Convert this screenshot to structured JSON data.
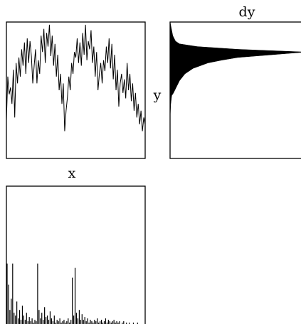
{
  "chart_data": [
    {
      "type": "line",
      "id": "main-panel",
      "title": "",
      "xlabel": "x",
      "ylabel": "y",
      "xlim": [
        0,
        1
      ],
      "ylim": [
        0,
        1
      ],
      "grid": false,
      "legend": null,
      "series": [
        {
          "x": [
            0.0,
            0.01,
            0.02,
            0.03,
            0.04,
            0.05,
            0.06,
            0.07,
            0.08,
            0.09,
            0.1,
            0.11,
            0.12,
            0.13,
            0.14,
            0.15,
            0.16,
            0.17,
            0.18,
            0.19,
            0.2,
            0.21,
            0.22,
            0.23,
            0.24,
            0.25,
            0.26,
            0.27,
            0.28,
            0.29,
            0.3,
            0.31,
            0.32,
            0.33,
            0.34,
            0.35,
            0.36,
            0.37,
            0.38,
            0.39,
            0.4,
            0.41,
            0.42,
            0.43,
            0.44,
            0.45,
            0.46,
            0.47,
            0.48,
            0.49,
            0.5,
            0.51,
            0.52,
            0.53,
            0.54,
            0.55,
            0.56,
            0.57,
            0.58,
            0.59,
            0.6,
            0.61,
            0.62,
            0.63,
            0.64,
            0.65,
            0.66,
            0.67,
            0.68,
            0.69,
            0.7,
            0.71,
            0.72,
            0.73,
            0.74,
            0.75,
            0.76,
            0.77,
            0.78,
            0.79,
            0.8,
            0.81,
            0.82,
            0.83,
            0.84,
            0.85,
            0.86,
            0.87,
            0.88,
            0.89,
            0.9,
            0.91,
            0.92,
            0.93,
            0.94,
            0.95,
            0.96,
            0.97,
            0.98,
            0.99,
            1.0
          ],
          "y": [
            0.28,
            0.6,
            0.47,
            0.52,
            0.4,
            0.65,
            0.3,
            0.7,
            0.55,
            0.74,
            0.6,
            0.8,
            0.68,
            0.85,
            0.62,
            0.88,
            0.7,
            0.86,
            0.75,
            0.55,
            0.68,
            0.8,
            0.55,
            0.72,
            0.62,
            0.9,
            0.78,
            0.95,
            0.7,
            0.92,
            0.82,
            0.98,
            0.75,
            0.9,
            0.68,
            0.84,
            0.6,
            0.76,
            0.5,
            0.62,
            0.4,
            0.55,
            0.2,
            0.35,
            0.45,
            0.6,
            0.5,
            0.7,
            0.62,
            0.78,
            0.74,
            0.88,
            0.7,
            0.85,
            0.68,
            0.92,
            0.76,
            0.98,
            0.72,
            0.86,
            0.8,
            0.94,
            0.7,
            0.82,
            0.6,
            0.78,
            0.5,
            0.62,
            0.7,
            0.55,
            0.72,
            0.64,
            0.82,
            0.7,
            0.88,
            0.66,
            0.84,
            0.58,
            0.76,
            0.5,
            0.65,
            0.38,
            0.55,
            0.62,
            0.48,
            0.58,
            0.44,
            0.7,
            0.5,
            0.62,
            0.42,
            0.55,
            0.35,
            0.48,
            0.3,
            0.4,
            0.25,
            0.35,
            0.2,
            0.3,
            0.25
          ]
        }
      ]
    },
    {
      "type": "area",
      "id": "y-marginal",
      "title": "dy",
      "orientation": "vertical",
      "ylim": [
        0,
        1
      ],
      "xlim": [
        0,
        1
      ],
      "grid": false,
      "legend": null,
      "series": [
        {
          "y": [
            1.0,
            0.95,
            0.9,
            0.86,
            0.84,
            0.82,
            0.8,
            0.78,
            0.76,
            0.74,
            0.72,
            0.7,
            0.66,
            0.62,
            0.57,
            0.52,
            0.48,
            0.46,
            0.4,
            0.3,
            0.2,
            0.1,
            0.0
          ],
          "x": [
            0.0,
            0.01,
            0.02,
            0.04,
            0.07,
            0.2,
            0.5,
            1.0,
            0.75,
            0.5,
            0.38,
            0.28,
            0.17,
            0.11,
            0.07,
            0.045,
            0.025,
            0.012,
            0.005,
            0.0,
            0.0,
            0.0,
            0.0
          ]
        }
      ]
    },
    {
      "type": "bar",
      "id": "x-marginal",
      "title": "",
      "ylabel": "",
      "xlim": [
        0,
        1
      ],
      "ylim": [
        0,
        1
      ],
      "grid": false,
      "legend": null,
      "series": [
        {
          "x": [
            0.0,
            0.01,
            0.02,
            0.03,
            0.04,
            0.05,
            0.06,
            0.07,
            0.08,
            0.09,
            0.1,
            0.11,
            0.12,
            0.13,
            0.14,
            0.15,
            0.16,
            0.17,
            0.18,
            0.19,
            0.2,
            0.21,
            0.22,
            0.23,
            0.24,
            0.25,
            0.26,
            0.27,
            0.28,
            0.29,
            0.3,
            0.31,
            0.32,
            0.33,
            0.34,
            0.35,
            0.36,
            0.37,
            0.38,
            0.39,
            0.4,
            0.41,
            0.42,
            0.43,
            0.44,
            0.45,
            0.46,
            0.47,
            0.48,
            0.49,
            0.5,
            0.51,
            0.52,
            0.53,
            0.54,
            0.55,
            0.56,
            0.57,
            0.58,
            0.59,
            0.6,
            0.61,
            0.62,
            0.63,
            0.64,
            0.65,
            0.66,
            0.67,
            0.68,
            0.69,
            0.7,
            0.71,
            0.72,
            0.73,
            0.74,
            0.75,
            0.76,
            0.77,
            0.78,
            0.79,
            0.8,
            0.81,
            0.82,
            0.83,
            0.84,
            0.85,
            0.86,
            0.87,
            0.88,
            0.89,
            0.9,
            0.91,
            0.92,
            0.93,
            0.94,
            0.95,
            0.96,
            0.97,
            0.98,
            0.99
          ],
          "y": [
            0.45,
            0.3,
            0.12,
            0.2,
            0.45,
            0.1,
            0.08,
            0.18,
            0.06,
            0.12,
            0.05,
            0.15,
            0.08,
            0.05,
            0.1,
            0.04,
            0.07,
            0.04,
            0.06,
            0.03,
            0.05,
            0.04,
            0.45,
            0.12,
            0.06,
            0.1,
            0.05,
            0.14,
            0.07,
            0.08,
            0.05,
            0.11,
            0.06,
            0.04,
            0.08,
            0.03,
            0.05,
            0.04,
            0.06,
            0.03,
            0.04,
            0.05,
            0.03,
            0.04,
            0.06,
            0.03,
            0.05,
            0.35,
            0.08,
            0.42,
            0.1,
            0.06,
            0.12,
            0.05,
            0.09,
            0.05,
            0.07,
            0.04,
            0.06,
            0.03,
            0.05,
            0.04,
            0.03,
            0.05,
            0.04,
            0.06,
            0.03,
            0.04,
            0.05,
            0.03,
            0.04,
            0.06,
            0.03,
            0.05,
            0.04,
            0.03,
            0.04,
            0.05,
            0.03,
            0.04,
            0.03,
            0.04,
            0.02,
            0.03,
            0.04,
            0.02,
            0.03,
            0.02,
            0.03,
            0.02,
            0.02,
            0.03,
            0.02,
            0.02,
            0.03,
            0.02,
            0.02,
            0.01,
            0.02,
            0.01
          ]
        }
      ]
    }
  ]
}
